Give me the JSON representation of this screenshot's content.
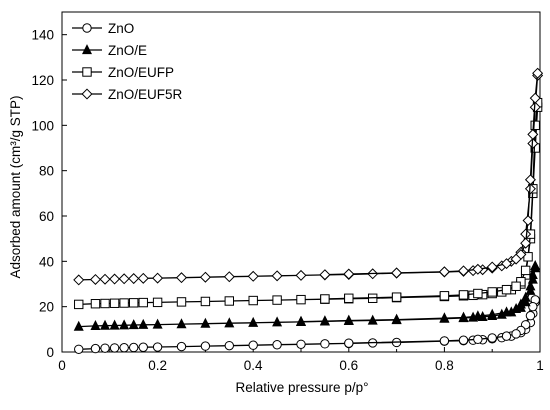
{
  "chart_data": {
    "type": "line",
    "xlabel": "Relative pressure p/p°",
    "ylabel": "Adsorbed amount (cm³/g STP)",
    "xlim": [
      0,
      1
    ],
    "ylim": [
      0,
      150
    ],
    "x_ticks": [
      0,
      0.2,
      0.4,
      0.6,
      0.8,
      1
    ],
    "x_tick_labels": [
      "0",
      "0.2",
      "0.4",
      "0.6",
      "0.8",
      "1"
    ],
    "y_ticks": [
      0,
      20,
      40,
      60,
      80,
      100,
      120,
      140
    ],
    "y_tick_labels": [
      "0",
      "20",
      "40",
      "60",
      "80",
      "100",
      "120",
      "140"
    ],
    "grid": false,
    "legend_position": "top-left",
    "series": [
      {
        "name": "ZnO",
        "marker": "circle",
        "color": "#000000",
        "adsorption": [
          [
            0.035,
            1.2
          ],
          [
            0.07,
            1.5
          ],
          [
            0.09,
            1.7
          ],
          [
            0.11,
            1.8
          ],
          [
            0.13,
            1.9
          ],
          [
            0.15,
            2.0
          ],
          [
            0.17,
            2.1
          ],
          [
            0.2,
            2.2
          ],
          [
            0.25,
            2.4
          ],
          [
            0.3,
            2.6
          ],
          [
            0.35,
            2.8
          ],
          [
            0.4,
            3.0
          ],
          [
            0.45,
            3.2
          ],
          [
            0.5,
            3.4
          ],
          [
            0.55,
            3.6
          ],
          [
            0.6,
            3.8
          ],
          [
            0.65,
            4.0
          ],
          [
            0.7,
            4.2
          ],
          [
            0.8,
            4.8
          ],
          [
            0.84,
            5.0
          ],
          [
            0.86,
            5.2
          ],
          [
            0.88,
            5.4
          ],
          [
            0.9,
            5.8
          ],
          [
            0.92,
            6.3
          ],
          [
            0.94,
            7.0
          ],
          [
            0.96,
            8.5
          ],
          [
            0.97,
            10
          ],
          [
            0.98,
            13
          ],
          [
            0.985,
            17
          ],
          [
            0.99,
            22
          ]
        ],
        "desorption": [
          [
            0.99,
            23
          ],
          [
            0.985,
            20
          ],
          [
            0.98,
            16
          ],
          [
            0.97,
            12
          ],
          [
            0.96,
            9.5
          ],
          [
            0.95,
            8.0
          ],
          [
            0.93,
            7.0
          ],
          [
            0.9,
            6.2
          ],
          [
            0.87,
            5.6
          ],
          [
            0.84,
            5.2
          ],
          [
            0.8,
            4.9
          ],
          [
            0.6,
            3.9
          ]
        ]
      },
      {
        "name": "ZnO/E",
        "marker": "triangle",
        "color": "#000000",
        "adsorption": [
          [
            0.035,
            11.2
          ],
          [
            0.07,
            11.5
          ],
          [
            0.09,
            11.6
          ],
          [
            0.11,
            11.7
          ],
          [
            0.13,
            11.8
          ],
          [
            0.15,
            11.9
          ],
          [
            0.17,
            12.0
          ],
          [
            0.2,
            12.1
          ],
          [
            0.25,
            12.3
          ],
          [
            0.3,
            12.5
          ],
          [
            0.35,
            12.7
          ],
          [
            0.4,
            12.9
          ],
          [
            0.45,
            13.1
          ],
          [
            0.5,
            13.3
          ],
          [
            0.55,
            13.5
          ],
          [
            0.6,
            13.7
          ],
          [
            0.65,
            13.9
          ],
          [
            0.7,
            14.1
          ],
          [
            0.8,
            14.7
          ],
          [
            0.84,
            15.0
          ],
          [
            0.86,
            15.2
          ],
          [
            0.88,
            15.5
          ],
          [
            0.9,
            15.9
          ],
          [
            0.92,
            16.5
          ],
          [
            0.94,
            17.5
          ],
          [
            0.96,
            19.5
          ],
          [
            0.97,
            22
          ],
          [
            0.98,
            27
          ],
          [
            0.985,
            32
          ],
          [
            0.99,
            37
          ]
        ],
        "desorption": [
          [
            0.99,
            38
          ],
          [
            0.985,
            34
          ],
          [
            0.98,
            29
          ],
          [
            0.97,
            24
          ],
          [
            0.96,
            21
          ],
          [
            0.95,
            19
          ],
          [
            0.93,
            17.5
          ],
          [
            0.9,
            16.5
          ],
          [
            0.87,
            15.8
          ],
          [
            0.84,
            15.2
          ],
          [
            0.8,
            14.9
          ],
          [
            0.7,
            14.3
          ],
          [
            0.6,
            13.9
          ],
          [
            0.55,
            13.6
          ],
          [
            0.5,
            13.4
          ]
        ]
      },
      {
        "name": "ZnO/EUFP",
        "marker": "square",
        "color": "#000000",
        "adsorption": [
          [
            0.035,
            21
          ],
          [
            0.07,
            21.3
          ],
          [
            0.09,
            21.4
          ],
          [
            0.11,
            21.5
          ],
          [
            0.13,
            21.6
          ],
          [
            0.15,
            21.7
          ],
          [
            0.17,
            21.8
          ],
          [
            0.2,
            21.9
          ],
          [
            0.25,
            22.1
          ],
          [
            0.3,
            22.3
          ],
          [
            0.35,
            22.5
          ],
          [
            0.4,
            22.7
          ],
          [
            0.45,
            22.9
          ],
          [
            0.5,
            23.1
          ],
          [
            0.55,
            23.3
          ],
          [
            0.6,
            23.5
          ],
          [
            0.65,
            23.7
          ],
          [
            0.7,
            24.0
          ],
          [
            0.8,
            24.5
          ],
          [
            0.84,
            24.8
          ],
          [
            0.86,
            25.0
          ],
          [
            0.88,
            25.3
          ],
          [
            0.9,
            25.8
          ],
          [
            0.92,
            26.5
          ],
          [
            0.94,
            27.5
          ],
          [
            0.96,
            30
          ],
          [
            0.97,
            34
          ],
          [
            0.98,
            50
          ],
          [
            0.985,
            70
          ],
          [
            0.99,
            90
          ],
          [
            0.995,
            108
          ]
        ],
        "desorption": [
          [
            0.995,
            110
          ],
          [
            0.99,
            100
          ],
          [
            0.985,
            72
          ],
          [
            0.98,
            52
          ],
          [
            0.975,
            42
          ],
          [
            0.97,
            36
          ],
          [
            0.96,
            31
          ],
          [
            0.95,
            29
          ],
          [
            0.93,
            27.5
          ],
          [
            0.9,
            26.5
          ],
          [
            0.87,
            25.8
          ],
          [
            0.84,
            25.2
          ],
          [
            0.8,
            24.8
          ],
          [
            0.7,
            24.2
          ],
          [
            0.6,
            23.7
          ],
          [
            0.55,
            23.4
          ]
        ]
      },
      {
        "name": "ZnO/EUF5R",
        "marker": "diamond",
        "color": "#000000",
        "adsorption": [
          [
            0.035,
            31.8
          ],
          [
            0.07,
            32.0
          ],
          [
            0.09,
            32.1
          ],
          [
            0.11,
            32.2
          ],
          [
            0.13,
            32.3
          ],
          [
            0.15,
            32.4
          ],
          [
            0.17,
            32.5
          ],
          [
            0.2,
            32.6
          ],
          [
            0.25,
            32.8
          ],
          [
            0.3,
            33.0
          ],
          [
            0.35,
            33.2
          ],
          [
            0.4,
            33.4
          ],
          [
            0.45,
            33.6
          ],
          [
            0.5,
            33.8
          ],
          [
            0.55,
            34.0
          ],
          [
            0.6,
            34.2
          ],
          [
            0.65,
            34.5
          ],
          [
            0.7,
            34.8
          ],
          [
            0.8,
            35.3
          ],
          [
            0.84,
            35.6
          ],
          [
            0.86,
            35.9
          ],
          [
            0.88,
            36.3
          ],
          [
            0.9,
            37
          ],
          [
            0.92,
            38
          ],
          [
            0.94,
            40
          ],
          [
            0.96,
            44
          ],
          [
            0.97,
            52
          ],
          [
            0.98,
            72
          ],
          [
            0.985,
            92
          ],
          [
            0.99,
            108
          ],
          [
            0.995,
            122
          ]
        ],
        "desorption": [
          [
            0.995,
            123
          ],
          [
            0.99,
            112
          ],
          [
            0.985,
            96
          ],
          [
            0.98,
            76
          ],
          [
            0.975,
            58
          ],
          [
            0.97,
            48
          ],
          [
            0.96,
            43
          ],
          [
            0.95,
            41
          ],
          [
            0.93,
            39
          ],
          [
            0.9,
            37.5
          ],
          [
            0.87,
            36.5
          ],
          [
            0.84,
            35.8
          ],
          [
            0.8,
            35.4
          ],
          [
            0.7,
            34.9
          ],
          [
            0.6,
            34.4
          ],
          [
            0.55,
            34.1
          ]
        ]
      }
    ]
  }
}
